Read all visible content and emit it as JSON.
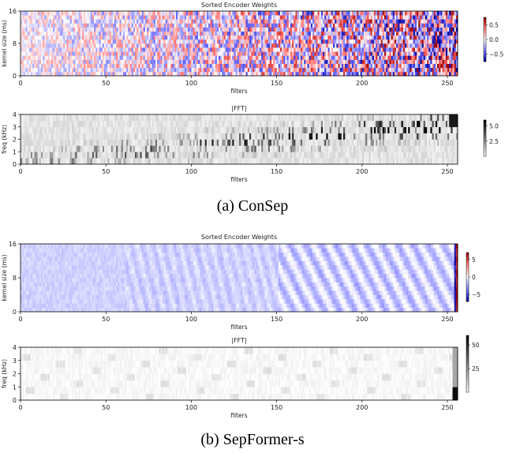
{
  "figure": {
    "captions": [
      "(a) ConSep",
      "(b) SepFormer-s"
    ]
  },
  "chart_data": [
    {
      "type": "heatmap",
      "panel": "ConSep weights",
      "title": "Sorted Encoder Weights",
      "xlabel": "filters",
      "ylabel": "kernel size (ms)",
      "xlim": [
        0,
        256
      ],
      "ylim": [
        0,
        16
      ],
      "xticks": [
        0,
        50,
        100,
        150,
        200,
        250
      ],
      "yticks": [
        0,
        8,
        16
      ],
      "colormap": "bwr",
      "colorbar": {
        "ticks": [
          0.5,
          0.0,
          -0.5
        ],
        "labels": [
          "0.5",
          "0.0",
          "−0.5"
        ],
        "range": [
          -0.75,
          0.75
        ]
      },
      "pattern": "random signed weights, amplitude increasing with filter index",
      "amplitude_profile": [
        0.25,
        0.8
      ]
    },
    {
      "type": "heatmap",
      "panel": "ConSep |FFT|",
      "title": "|FFT|",
      "xlabel": "filters",
      "ylabel": "freq (kHz)",
      "xlim": [
        0,
        256
      ],
      "ylim": [
        0,
        4
      ],
      "xticks": [
        0,
        50,
        100,
        150,
        200,
        250
      ],
      "yticks": [
        0,
        1,
        2,
        3,
        4
      ],
      "colormap": "Greys",
      "colorbar": {
        "ticks": [
          5.0,
          2.5
        ],
        "labels": [
          "5.0",
          "2.5"
        ],
        "range": [
          0,
          6
        ]
      },
      "pattern": "sparse dark cells, peak frequency rising with filter index"
    },
    {
      "type": "heatmap",
      "panel": "SepFormer-s weights",
      "title": "Sorted Encoder Weights",
      "xlabel": "filters",
      "ylabel": "kernel size (ms)",
      "xlim": [
        0,
        256
      ],
      "ylim": [
        0,
        16
      ],
      "xticks": [
        0,
        50,
        100,
        150,
        200,
        250
      ],
      "yticks": [
        0,
        8,
        16
      ],
      "colormap": "bwr",
      "colorbar": {
        "ticks": [
          5,
          0,
          -5
        ],
        "labels": [
          "5",
          "0",
          "−5"
        ],
        "range": [
          -7,
          7
        ]
      },
      "pattern": "mostly small negative weights (light blue), oscillating stripes after filter ~150, strong outlier filters at the end",
      "outlier_filters": [
        254,
        255
      ]
    },
    {
      "type": "heatmap",
      "panel": "SepFormer-s |FFT|",
      "title": "|FFT|",
      "xlabel": "filters",
      "ylabel": "freq (kHz)",
      "xlim": [
        0,
        256
      ],
      "ylim": [
        0,
        4
      ],
      "xticks": [
        0,
        50,
        100,
        150,
        200,
        250
      ],
      "yticks": [
        0,
        1,
        2,
        3,
        4
      ],
      "colormap": "Greys",
      "colorbar": {
        "ticks": [
          50,
          25
        ],
        "labels": [
          "50",
          "25"
        ],
        "range": [
          0,
          60
        ]
      },
      "pattern": "nearly white, faint diagonal streaks, dark only in the last filters"
    }
  ]
}
